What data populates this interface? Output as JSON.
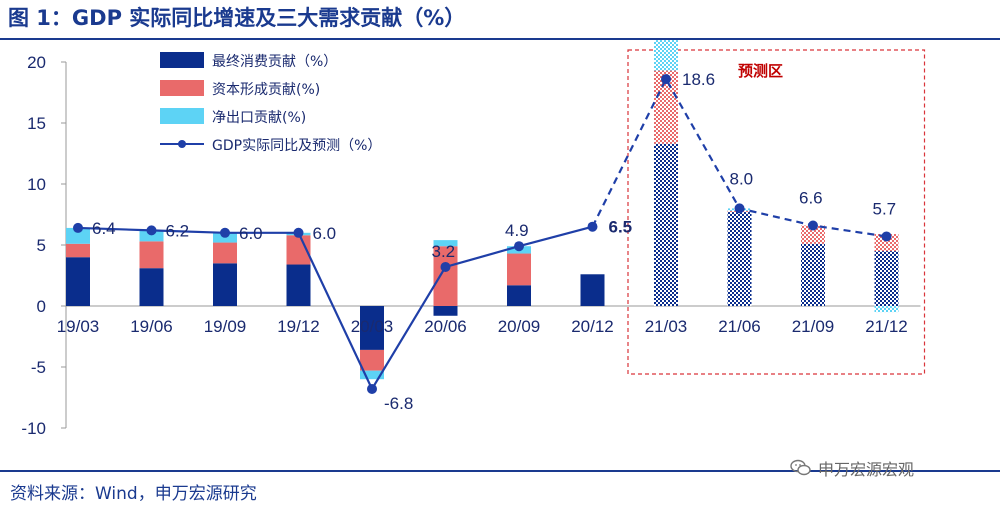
{
  "header": {
    "title": "图 1：GDP 实际同比增速及三大需求贡献（%）"
  },
  "footer": {
    "source": "资料来源：Wind，申万宏源研究",
    "watermark": "申万宏源宏观"
  },
  "colors": {
    "consumption": "#0a2d8c",
    "capital": "#e96a6a",
    "net_export": "#5dd3f5",
    "gdp_line": "#1f3fa8",
    "forecast_box": "#d9343a",
    "axis_text": "#1a2a6f"
  },
  "chart_data": {
    "type": "bar",
    "stacked": true,
    "forecast_label": "预测区",
    "categories": [
      "19/03",
      "19/06",
      "19/09",
      "19/12",
      "20/03",
      "20/06",
      "20/09",
      "20/12",
      "21/03",
      "21/06",
      "21/09",
      "21/12"
    ],
    "forecast_categories": [
      "21/03",
      "21/06",
      "21/09",
      "21/12"
    ],
    "ylim": [
      -10,
      20
    ],
    "yticks": [
      20,
      15,
      10,
      5,
      0,
      -5,
      -10
    ],
    "series": [
      {
        "name": "最终消费贡献（%）",
        "values": [
          4.0,
          3.1,
          3.5,
          3.4,
          -3.6,
          -0.8,
          1.7,
          2.6,
          13.3,
          7.7,
          5.1,
          4.5
        ]
      },
      {
        "name": "资本形成贡献(%)",
        "values": [
          1.1,
          2.2,
          1.7,
          2.4,
          -1.7,
          4.9,
          2.6,
          0.0,
          6.0,
          0.1,
          1.5,
          1.4
        ]
      },
      {
        "name": "净出口贡献(%)",
        "values": [
          1.3,
          0.9,
          0.8,
          0.2,
          -0.7,
          0.5,
          0.6,
          0.0,
          2.5,
          0.2,
          0.0,
          -0.5
        ]
      }
    ],
    "line": {
      "name": "GDP实际同比及预测（%）",
      "values": [
        6.4,
        6.2,
        6.0,
        6.0,
        -6.8,
        3.2,
        4.9,
        6.5,
        18.6,
        8.0,
        6.6,
        5.7
      ],
      "labels": [
        "6.4",
        "6.2",
        "6.0",
        "6.0",
        "-6.8",
        "3.2",
        "4.9",
        "6.5",
        "18.6",
        "8.0",
        "6.6",
        "5.7"
      ]
    }
  }
}
